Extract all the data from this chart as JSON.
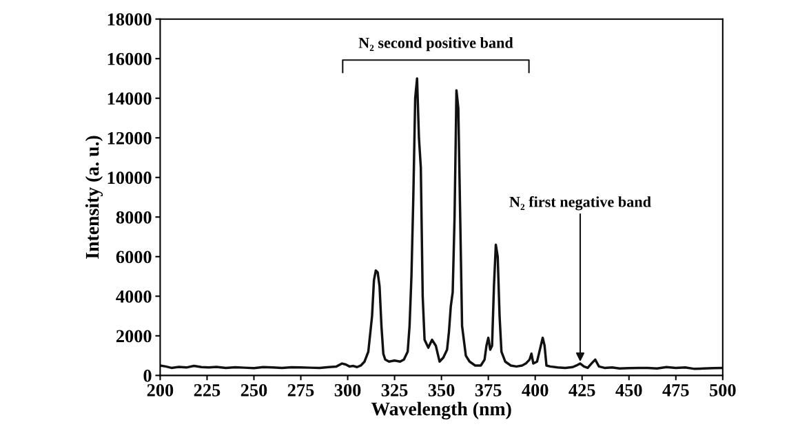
{
  "chart_data": {
    "type": "line",
    "xlabel": "Wavelength (nm)",
    "ylabel": "Intensity (a. u.)",
    "x": [
      200,
      203,
      206,
      210,
      214,
      218,
      222,
      226,
      230,
      235,
      240,
      245,
      250,
      255,
      260,
      265,
      270,
      275,
      280,
      285,
      290,
      294,
      297,
      299,
      301,
      303,
      305,
      307,
      309,
      311,
      313,
      314,
      315,
      316,
      317,
      318,
      319,
      320,
      322,
      325,
      328,
      330,
      332,
      333,
      334,
      335,
      336,
      337,
      338,
      339,
      340,
      341,
      343,
      345,
      347,
      349,
      351,
      353,
      354,
      355,
      356,
      357,
      358,
      359,
      360,
      361,
      363,
      365,
      368,
      371,
      373,
      374,
      375,
      376,
      377,
      378,
      379,
      380,
      381,
      382,
      384,
      387,
      390,
      393,
      395,
      397,
      398,
      399,
      401,
      403,
      404,
      405,
      406,
      408,
      412,
      416,
      420,
      422,
      424,
      426,
      428,
      430,
      432,
      434,
      437,
      441,
      445,
      450,
      455,
      460,
      465,
      470,
      475,
      480,
      485,
      490,
      495,
      500
    ],
    "series": [
      {
        "color": "#111111",
        "values": [
          500,
          450,
          380,
          430,
          400,
          480,
          420,
          400,
          430,
          380,
          410,
          390,
          370,
          420,
          400,
          380,
          410,
          400,
          390,
          380,
          420,
          450,
          600,
          550,
          450,
          480,
          420,
          500,
          700,
          1200,
          3000,
          4800,
          5300,
          5200,
          4500,
          2500,
          1100,
          800,
          700,
          750,
          700,
          800,
          1200,
          2500,
          5000,
          9000,
          14000,
          15000,
          12000,
          10500,
          4000,
          1800,
          1400,
          1800,
          1500,
          700,
          900,
          1300,
          2200,
          3500,
          4200,
          8000,
          14400,
          13500,
          8000,
          2500,
          1000,
          700,
          500,
          500,
          800,
          1500,
          1900,
          1300,
          1500,
          4500,
          6600,
          6000,
          3000,
          1200,
          700,
          500,
          450,
          500,
          600,
          800,
          1100,
          600,
          700,
          1500,
          1900,
          1500,
          500,
          450,
          400,
          380,
          420,
          500,
          600,
          450,
          380,
          600,
          800,
          450,
          380,
          400,
          350,
          370,
          380,
          380,
          350,
          420,
          380,
          400,
          330,
          350,
          370,
          380
        ]
      }
    ],
    "xlim": [
      200,
      500
    ],
    "xticks": [
      200,
      225,
      250,
      275,
      300,
      325,
      350,
      375,
      400,
      425,
      450,
      475,
      500
    ],
    "ylim": [
      0,
      18000
    ],
    "yticks": [
      0,
      2000,
      4000,
      6000,
      8000,
      10000,
      12000,
      14000,
      16000,
      18000
    ],
    "grid": false,
    "line_style": "solid",
    "marker": "none",
    "annotations": [
      "N₂ second positive band",
      {
        "text": "N₂ first negative band",
        "x": 424,
        "y": 600
      }
    ]
  }
}
